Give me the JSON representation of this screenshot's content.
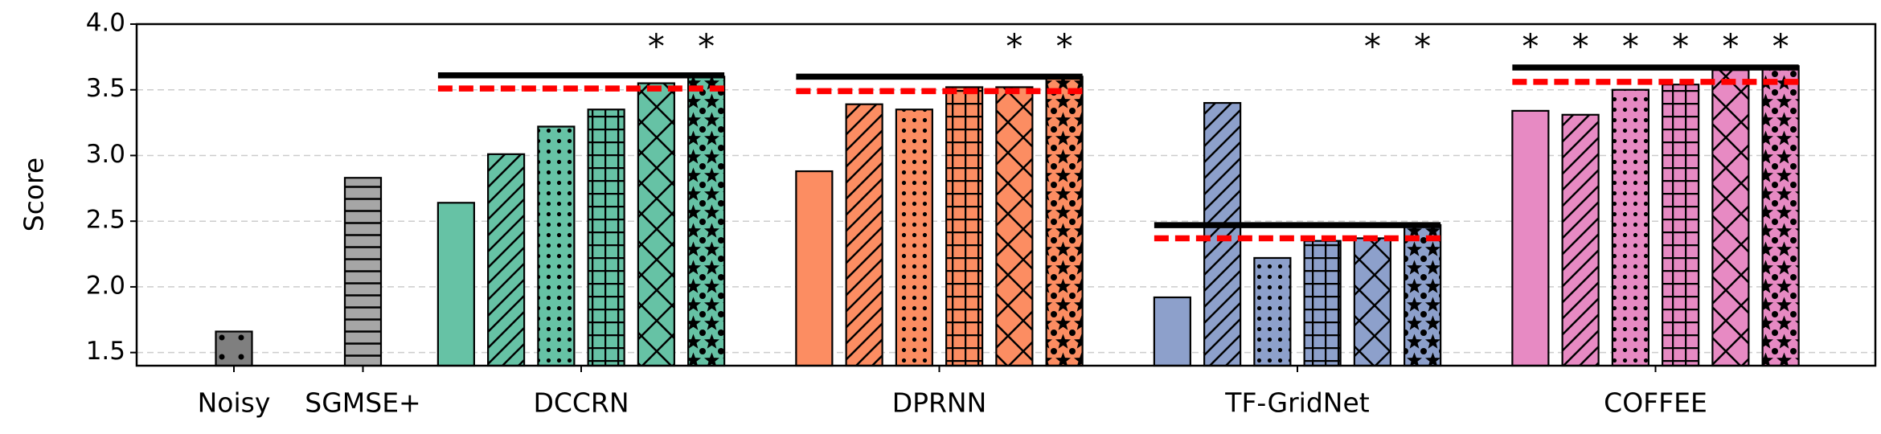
{
  "chart_data": {
    "type": "bar",
    "y_label": "Score",
    "ylim": [
      1.4,
      4.0
    ],
    "yticks": [
      1.5,
      {
        "value": 2.0,
        "label": "2.0"
      },
      2.5,
      {
        "value": 3.0,
        "label": "3.0"
      },
      3.5,
      {
        "value": 4.0,
        "label": "4.0"
      }
    ],
    "grid": true,
    "groups": [
      {
        "name": "Noisy",
        "color": "#7f7f7f",
        "values": [
          1.66
        ],
        "patterns": [
          "sparse-dots"
        ],
        "annotations": [
          null
        ]
      },
      {
        "name": "SGMSE+",
        "color": "#a6a6a6",
        "values": [
          2.83
        ],
        "patterns": [
          "hlines"
        ],
        "annotations": [
          null
        ]
      },
      {
        "name": "DCCRN",
        "color": "#66c2a5",
        "values": [
          2.64,
          3.01,
          3.22,
          3.35,
          3.55,
          3.6
        ],
        "patterns": [
          "none",
          "diagonal",
          "dots",
          "grid",
          "cross",
          "stars"
        ],
        "annotations": [
          null,
          null,
          null,
          null,
          "*",
          "*"
        ],
        "solid_line": 3.61,
        "dashed_line": 3.51
      },
      {
        "name": "DPRNN",
        "color": "#fc8d62",
        "values": [
          2.88,
          3.39,
          3.35,
          3.52,
          3.52,
          3.6
        ],
        "patterns": [
          "none",
          "diagonal",
          "dots",
          "grid",
          "cross",
          "stars"
        ],
        "annotations": [
          null,
          null,
          null,
          null,
          "*",
          "*"
        ],
        "solid_line": 3.6,
        "dashed_line": 3.49
      },
      {
        "name": "TF-GridNet",
        "color": "#8da0cb",
        "values": [
          1.92,
          3.4,
          2.22,
          2.35,
          2.37,
          2.47
        ],
        "patterns": [
          "none",
          "diagonal",
          "dots",
          "grid",
          "cross",
          "stars"
        ],
        "annotations": [
          null,
          null,
          null,
          null,
          "*",
          "*"
        ],
        "solid_line": 2.47,
        "dashed_line": 2.37
      },
      {
        "name": "COFFEE",
        "color": "#e78ac3",
        "values": [
          3.34,
          3.31,
          3.5,
          3.54,
          3.65,
          3.68
        ],
        "patterns": [
          "none",
          "diagonal",
          "dots",
          "grid",
          "cross",
          "stars"
        ],
        "annotations": [
          "*",
          "*",
          "*",
          "*",
          "*",
          "*"
        ],
        "solid_line": 3.67,
        "dashed_line": 3.56
      }
    ]
  }
}
